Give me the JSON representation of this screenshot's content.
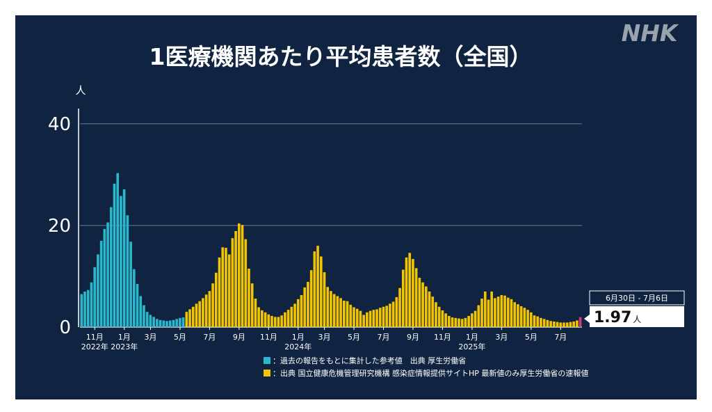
{
  "logo": "NHK",
  "colors": {
    "background": "#102441",
    "reference": "#29b8cc",
    "official": "#f2c500",
    "latest": "#d23a7a",
    "grid": "#6c7e94"
  },
  "chart_data": {
    "type": "bar",
    "title": "1医療機関あたり平均患者数（全国）",
    "ylabel": "人",
    "ylim": [
      0,
      43
    ],
    "yticks": [
      0,
      20,
      40
    ],
    "grid": true,
    "xticks": [
      {
        "week": 4,
        "label": "11月"
      },
      {
        "week": 13,
        "label": "1月"
      },
      {
        "week": 21,
        "label": "3月"
      },
      {
        "week": 30,
        "label": "5月"
      },
      {
        "week": 39,
        "label": "7月"
      },
      {
        "week": 48,
        "label": "9月"
      },
      {
        "week": 57,
        "label": "11月"
      },
      {
        "week": 66,
        "label": "1月"
      },
      {
        "week": 74,
        "label": "3月"
      },
      {
        "week": 83,
        "label": "5月"
      },
      {
        "week": 92,
        "label": "7月"
      },
      {
        "week": 101,
        "label": "9月"
      },
      {
        "week": 110,
        "label": "11月"
      },
      {
        "week": 119,
        "label": "1月"
      },
      {
        "week": 128,
        "label": "3月"
      },
      {
        "week": 137,
        "label": "5月"
      },
      {
        "week": 146,
        "label": "7月"
      }
    ],
    "year_labels": [
      {
        "week": 4,
        "label": "2022年"
      },
      {
        "week": 13,
        "label": "2023年"
      },
      {
        "week": 66,
        "label": "2024年"
      },
      {
        "week": 119,
        "label": "2025年"
      }
    ],
    "series": [
      {
        "name": "過去の報告をもとに集計した参考値　出典 厚生労働省",
        "color": "#29b8cc",
        "values": [
          6.5,
          7.0,
          7.3,
          8.8,
          11.8,
          14.3,
          17.0,
          19.3,
          20.6,
          23.6,
          28.2,
          30.3,
          25.8,
          27.1,
          22.0,
          16.8,
          11.4,
          8.5,
          6.1,
          4.3,
          3.0,
          2.4,
          2.0,
          1.6,
          1.4,
          1.3,
          1.2,
          1.3,
          1.4,
          1.6,
          1.8,
          1.9
        ]
      },
      {
        "name": "出典 国立健康危機管理研究機構 感染症情報提供サイトHP 最新値のみ厚生労働省の速報値",
        "color": "#f2c500",
        "values": [
          3.0,
          3.5,
          4.0,
          4.6,
          5.1,
          5.7,
          6.4,
          7.1,
          8.6,
          10.7,
          13.7,
          15.7,
          15.6,
          14.3,
          17.5,
          18.9,
          20.4,
          20.1,
          17.3,
          11.5,
          8.6,
          5.6,
          3.9,
          3.3,
          2.9,
          2.5,
          2.2,
          2.0,
          2.0,
          2.3,
          2.9,
          3.4,
          4.0,
          4.6,
          5.5,
          6.3,
          7.8,
          8.9,
          11.2,
          14.9,
          16.0,
          13.9,
          10.8,
          7.9,
          7.1,
          6.5,
          6.1,
          5.7,
          5.2,
          5.1,
          4.4,
          3.9,
          3.6,
          3.2,
          2.4,
          2.9,
          3.2,
          3.4,
          3.5,
          3.8,
          4.0,
          4.2,
          4.6,
          5.0,
          5.9,
          7.7,
          11.3,
          13.7,
          14.6,
          13.4,
          11.6,
          9.7,
          8.8,
          8.0,
          7.0,
          6.0,
          4.9,
          4.0,
          3.3,
          2.7,
          2.2,
          1.9,
          1.8,
          1.7,
          1.6,
          1.8,
          2.2,
          2.7,
          3.2,
          4.3,
          5.6,
          7.0,
          5.4,
          7.0,
          5.7,
          6.0,
          6.3,
          6.2,
          5.8,
          5.5,
          4.9,
          4.5,
          4.1,
          3.8,
          3.4,
          2.9,
          2.3,
          2.1,
          1.8,
          1.6,
          1.4,
          1.2,
          1.1,
          1.0,
          0.9,
          0.9,
          0.9,
          1.0,
          1.1,
          1.3
        ]
      },
      {
        "name": "最新値",
        "color": "#d23a7a",
        "values": [
          1.97
        ]
      }
    ]
  },
  "legend": {
    "reference": "：過去の報告をもとに集計した参考値　出典 厚生労働省",
    "official": "：出典 国立健康危機管理研究機構 感染症情報提供サイトHP 最新値のみ厚生労働省の速報値"
  },
  "callout": {
    "period": "6月30日 - 7月6日",
    "value": "1.97",
    "unit": "人"
  }
}
